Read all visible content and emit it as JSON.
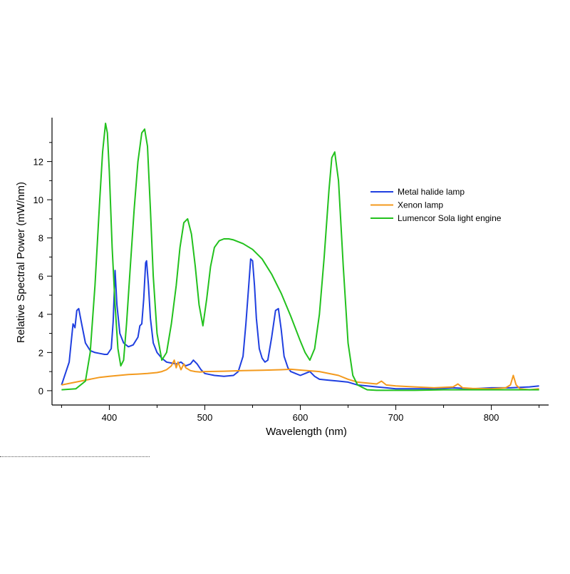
{
  "chart_data": {
    "type": "line",
    "title": "",
    "xlabel": "Wavelength (nm)",
    "ylabel": "Relative Spectral Power (mW/nm)",
    "xlim": [
      340,
      860
    ],
    "ylim": [
      -0.75,
      14.3
    ],
    "xticks": [
      400,
      500,
      600,
      700,
      800
    ],
    "yticks": [
      0,
      2,
      4,
      6,
      8,
      10,
      12
    ],
    "grid": false,
    "legend_position": "top-right",
    "series": [
      {
        "name": "Metal halide lamp",
        "color": "#1f3fe0",
        "x": [
          350,
          358,
          362,
          364,
          366,
          368,
          371,
          375,
          380,
          385,
          390,
          395,
          398,
          402,
          404,
          406,
          408,
          411,
          415,
          420,
          425,
          430,
          432,
          434,
          436,
          438,
          439,
          441,
          443,
          446,
          450,
          455,
          460,
          465,
          470,
          475,
          480,
          485,
          488,
          492,
          496,
          500,
          505,
          510,
          520,
          530,
          535,
          540,
          543,
          546,
          548,
          550,
          552,
          554,
          557,
          560,
          563,
          566,
          570,
          574,
          577,
          580,
          583,
          587,
          590,
          595,
          600,
          605,
          610,
          615,
          620,
          630,
          640,
          650,
          660,
          670,
          680,
          690,
          700,
          720,
          740,
          760,
          780,
          800,
          820,
          840,
          850
        ],
        "y": [
          0.3,
          1.5,
          3.5,
          3.3,
          4.2,
          4.3,
          3.5,
          2.5,
          2.1,
          2.0,
          1.95,
          1.9,
          1.9,
          2.2,
          3.6,
          6.3,
          4.5,
          3.0,
          2.5,
          2.3,
          2.4,
          2.8,
          3.4,
          3.5,
          4.8,
          6.7,
          6.8,
          5.5,
          3.8,
          2.5,
          2.0,
          1.7,
          1.5,
          1.45,
          1.4,
          1.5,
          1.3,
          1.4,
          1.6,
          1.4,
          1.1,
          0.9,
          0.85,
          0.8,
          0.75,
          0.8,
          1.0,
          1.8,
          3.5,
          5.5,
          6.9,
          6.8,
          5.5,
          3.8,
          2.2,
          1.7,
          1.5,
          1.6,
          2.8,
          4.2,
          4.3,
          3.2,
          1.8,
          1.2,
          1.0,
          0.9,
          0.8,
          0.9,
          1.0,
          0.75,
          0.6,
          0.55,
          0.5,
          0.45,
          0.3,
          0.25,
          0.2,
          0.15,
          0.1,
          0.1,
          0.1,
          0.15,
          0.1,
          0.15,
          0.15,
          0.2,
          0.25
        ]
      },
      {
        "name": "Xenon lamp",
        "color": "#f39a1e",
        "x": [
          350,
          370,
          390,
          400,
          410,
          420,
          430,
          440,
          450,
          455,
          460,
          465,
          468,
          470,
          472,
          475,
          478,
          480,
          485,
          490,
          495,
          500,
          520,
          540,
          560,
          580,
          590,
          600,
          620,
          640,
          650,
          660,
          680,
          685,
          690,
          700,
          720,
          740,
          760,
          765,
          770,
          780,
          800,
          815,
          820,
          823,
          826,
          830,
          840,
          850
        ],
        "y": [
          0.3,
          0.5,
          0.7,
          0.75,
          0.8,
          0.85,
          0.87,
          0.9,
          0.95,
          1.0,
          1.1,
          1.3,
          1.6,
          1.2,
          1.5,
          1.1,
          1.4,
          1.2,
          1.05,
          1.0,
          0.98,
          1.0,
          1.02,
          1.05,
          1.07,
          1.1,
          1.12,
          1.08,
          1.0,
          0.8,
          0.6,
          0.45,
          0.35,
          0.5,
          0.3,
          0.25,
          0.2,
          0.15,
          0.2,
          0.35,
          0.15,
          0.12,
          0.1,
          0.15,
          0.3,
          0.8,
          0.3,
          0.1,
          0.05,
          0.1
        ]
      },
      {
        "name": "Lumencor Sola light engine",
        "color": "#22c11d",
        "x": [
          350,
          365,
          375,
          380,
          385,
          390,
          393,
          396,
          398,
          400,
          403,
          406,
          409,
          412,
          415,
          418,
          422,
          426,
          430,
          434,
          437,
          440,
          443,
          446,
          450,
          455,
          460,
          465,
          470,
          474,
          478,
          482,
          486,
          490,
          494,
          498,
          502,
          506,
          510,
          515,
          520,
          525,
          530,
          540,
          550,
          560,
          570,
          580,
          590,
          600,
          605,
          610,
          615,
          620,
          625,
          630,
          633,
          636,
          640,
          645,
          650,
          655,
          660,
          670,
          680,
          700,
          720,
          750,
          780,
          800,
          820,
          850
        ],
        "y": [
          0.05,
          0.1,
          0.5,
          2.0,
          5.5,
          10.0,
          12.5,
          14.0,
          13.5,
          11.5,
          7.5,
          4.5,
          2.2,
          1.3,
          1.6,
          3.5,
          6.5,
          9.5,
          12.0,
          13.5,
          13.7,
          12.8,
          9.5,
          6.0,
          3.0,
          1.6,
          2.0,
          3.5,
          5.5,
          7.5,
          8.8,
          9.0,
          8.2,
          6.5,
          4.5,
          3.4,
          4.8,
          6.5,
          7.5,
          7.85,
          7.95,
          7.95,
          7.9,
          7.7,
          7.4,
          6.9,
          6.1,
          5.1,
          3.9,
          2.6,
          2.0,
          1.6,
          2.2,
          4.0,
          7.0,
          10.5,
          12.2,
          12.5,
          11.0,
          6.5,
          2.5,
          0.8,
          0.3,
          0.05,
          0.02,
          0.02,
          0.02,
          0.05,
          0.05,
          0.05,
          0.05,
          0.05
        ]
      }
    ]
  }
}
